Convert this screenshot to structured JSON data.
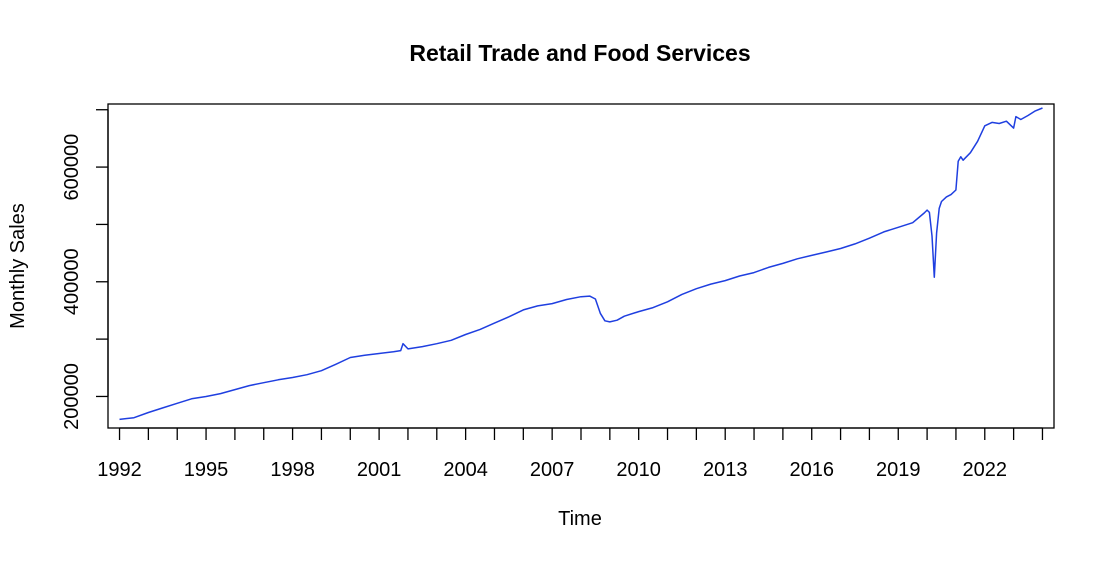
{
  "chart_data": {
    "type": "line",
    "title": "Retail Trade and Food Services",
    "xlabel": "Time",
    "ylabel": "Monthly Sales",
    "line_color": "#1f3fe0",
    "grid": false,
    "xlim": [
      1991.6,
      2024.4
    ],
    "ylim": [
      145000,
      710000
    ],
    "x_ticks": [
      1992,
      1993,
      1994,
      1995,
      1996,
      1997,
      1998,
      1999,
      2000,
      2001,
      2002,
      2003,
      2004,
      2005,
      2006,
      2007,
      2008,
      2009,
      2010,
      2011,
      2012,
      2013,
      2014,
      2015,
      2016,
      2017,
      2018,
      2019,
      2020,
      2021,
      2022,
      2023,
      2024
    ],
    "x_tick_labels": [
      "1992",
      "1995",
      "1998",
      "2001",
      "2004",
      "2007",
      "2010",
      "2013",
      "2016",
      "2019",
      "2022"
    ],
    "y_ticks": [
      200000,
      300000,
      400000,
      500000,
      600000,
      700000
    ],
    "y_tick_labels": [
      "200000",
      "400000",
      "600000"
    ],
    "series": [
      {
        "x": [
          1992.0,
          1992.5,
          1993.0,
          1993.5,
          1994.0,
          1994.5,
          1995.0,
          1995.5,
          1996.0,
          1996.5,
          1997.0,
          1997.5,
          1998.0,
          1998.5,
          1999.0,
          1999.5,
          2000.0,
          2000.5,
          2001.0,
          2001.5,
          2001.75,
          2001.83,
          2002.0,
          2002.5,
          2003.0,
          2003.5,
          2004.0,
          2004.5,
          2005.0,
          2005.5,
          2006.0,
          2006.5,
          2007.0,
          2007.5,
          2008.0,
          2008.3,
          2008.5,
          2008.67,
          2008.83,
          2009.0,
          2009.25,
          2009.5,
          2010.0,
          2010.5,
          2011.0,
          2011.5,
          2012.0,
          2012.5,
          2013.0,
          2013.5,
          2014.0,
          2014.5,
          2015.0,
          2015.5,
          2016.0,
          2016.5,
          2017.0,
          2017.5,
          2018.0,
          2018.5,
          2019.0,
          2019.5,
          2019.9,
          2020.0,
          2020.08,
          2020.17,
          2020.25,
          2020.33,
          2020.42,
          2020.5,
          2020.67,
          2020.83,
          2021.0,
          2021.08,
          2021.17,
          2021.25,
          2021.5,
          2021.75,
          2022.0,
          2022.25,
          2022.5,
          2022.75,
          2023.0,
          2023.08,
          2023.25,
          2023.5,
          2023.75,
          2024.0
        ],
        "y": [
          160000,
          163000,
          172000,
          180000,
          188000,
          196000,
          200000,
          205000,
          212000,
          219000,
          224000,
          229000,
          233000,
          238000,
          245000,
          256000,
          268000,
          272000,
          275000,
          278000,
          280000,
          292000,
          283000,
          287000,
          292000,
          298000,
          308000,
          317000,
          328000,
          339000,
          351000,
          358000,
          362000,
          369000,
          374000,
          375000,
          370000,
          345000,
          332000,
          330000,
          333000,
          340000,
          348000,
          355000,
          365000,
          378000,
          388000,
          396000,
          402000,
          410000,
          416000,
          425000,
          432000,
          440000,
          446000,
          452000,
          458000,
          466000,
          476000,
          487000,
          495000,
          503000,
          520000,
          525000,
          521000,
          480000,
          408000,
          485000,
          528000,
          540000,
          548000,
          552000,
          560000,
          610000,
          618000,
          612000,
          625000,
          645000,
          672000,
          678000,
          676000,
          680000,
          668000,
          688000,
          683000,
          690000,
          698000,
          703000
        ]
      }
    ]
  }
}
